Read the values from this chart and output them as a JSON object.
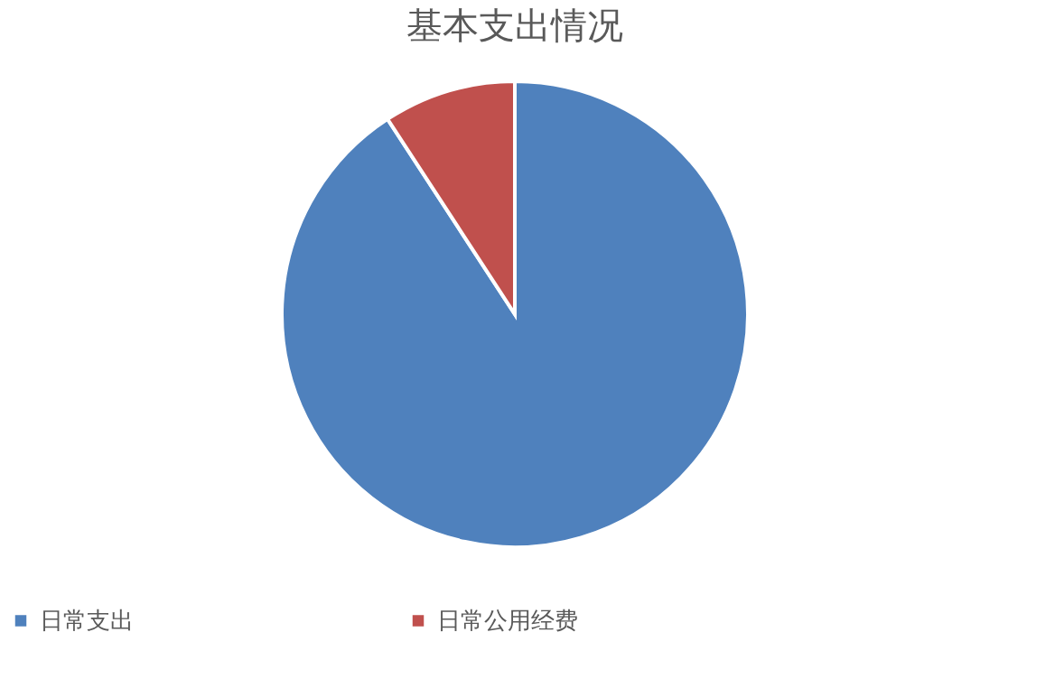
{
  "chart_data": {
    "type": "pie",
    "title": "基本支出情况",
    "categories": [
      "日常支出",
      "日常公用经费"
    ],
    "values": [
      90.8,
      9.2
    ],
    "colors": [
      "#4f81bd",
      "#c0504d"
    ],
    "legend": "bottom"
  }
}
